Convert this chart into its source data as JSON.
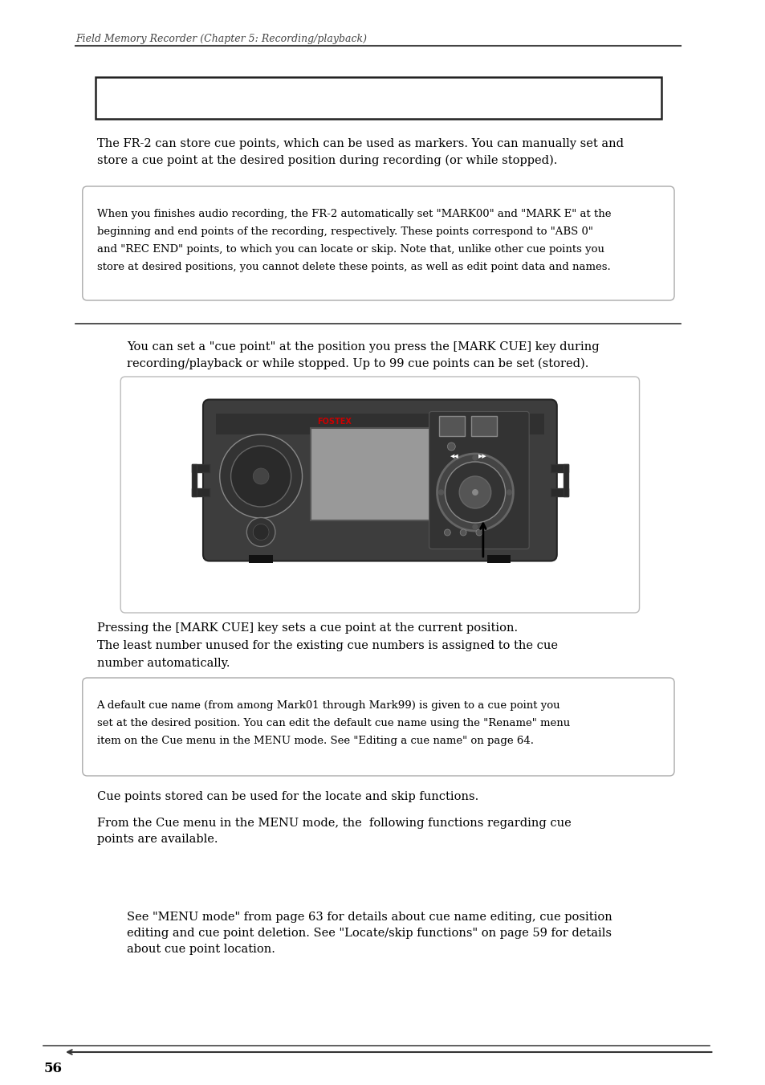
{
  "header_text": "Field Memory Recorder (Chapter 5: Recording/playback)",
  "para1": "The FR-2 can store cue points, which can be used as markers. You can manually set and\nstore a cue point at the desired position during recording (or while stopped).",
  "note1_lines": [
    "When you finishes audio recording, the FR-2 automatically set \"MARK00\" and \"MARK E\" at the",
    "beginning and end points of the recording, respectively. These points correspond to \"ABS 0\"",
    "and \"REC END\" points, to which you can locate or skip. Note that, unlike other cue points you",
    "store at desired positions, you cannot delete these points, as well as edit point data and names."
  ],
  "para2": "You can set a \"cue point\" at the position you press the [MARK CUE] key during\nrecording/playback or while stopped. Up to 99 cue points can be set (stored).",
  "para3_line1": "Pressing the [MARK CUE] key sets a cue point at the current position.",
  "para3_line2": "The least number unused for the existing cue numbers is assigned to the cue",
  "para3_line3": "number automatically.",
  "note2_lines": [
    "A default cue name (from among Mark01 through Mark99) is given to a cue point you",
    "set at the desired position. You can edit the default cue name using the \"Rename\" menu",
    "item on the Cue menu in the MENU mode. See \"Editing a cue name\" on page 64."
  ],
  "para4": "Cue points stored can be used for the locate and skip functions.",
  "para5": "From the Cue menu in the MENU mode, the  following functions regarding cue\npoints are available.",
  "para6": "See \"MENU mode\" from page 63 for details about cue name editing, cue position\nediting and cue point deletion. See \"Locate/skip functions\" on page 59 for details\nabout cue point location.",
  "page_number": "56",
  "bg_color": "#ffffff",
  "text_color": "#000000",
  "header_color": "#555555",
  "line_color": "#555555",
  "fostex_color": "#cc0000",
  "device_body": "#3d3d3d",
  "device_dark": "#2a2a2a",
  "device_mid": "#555555",
  "device_screen": "#888888",
  "device_light": "#aaaaaa"
}
